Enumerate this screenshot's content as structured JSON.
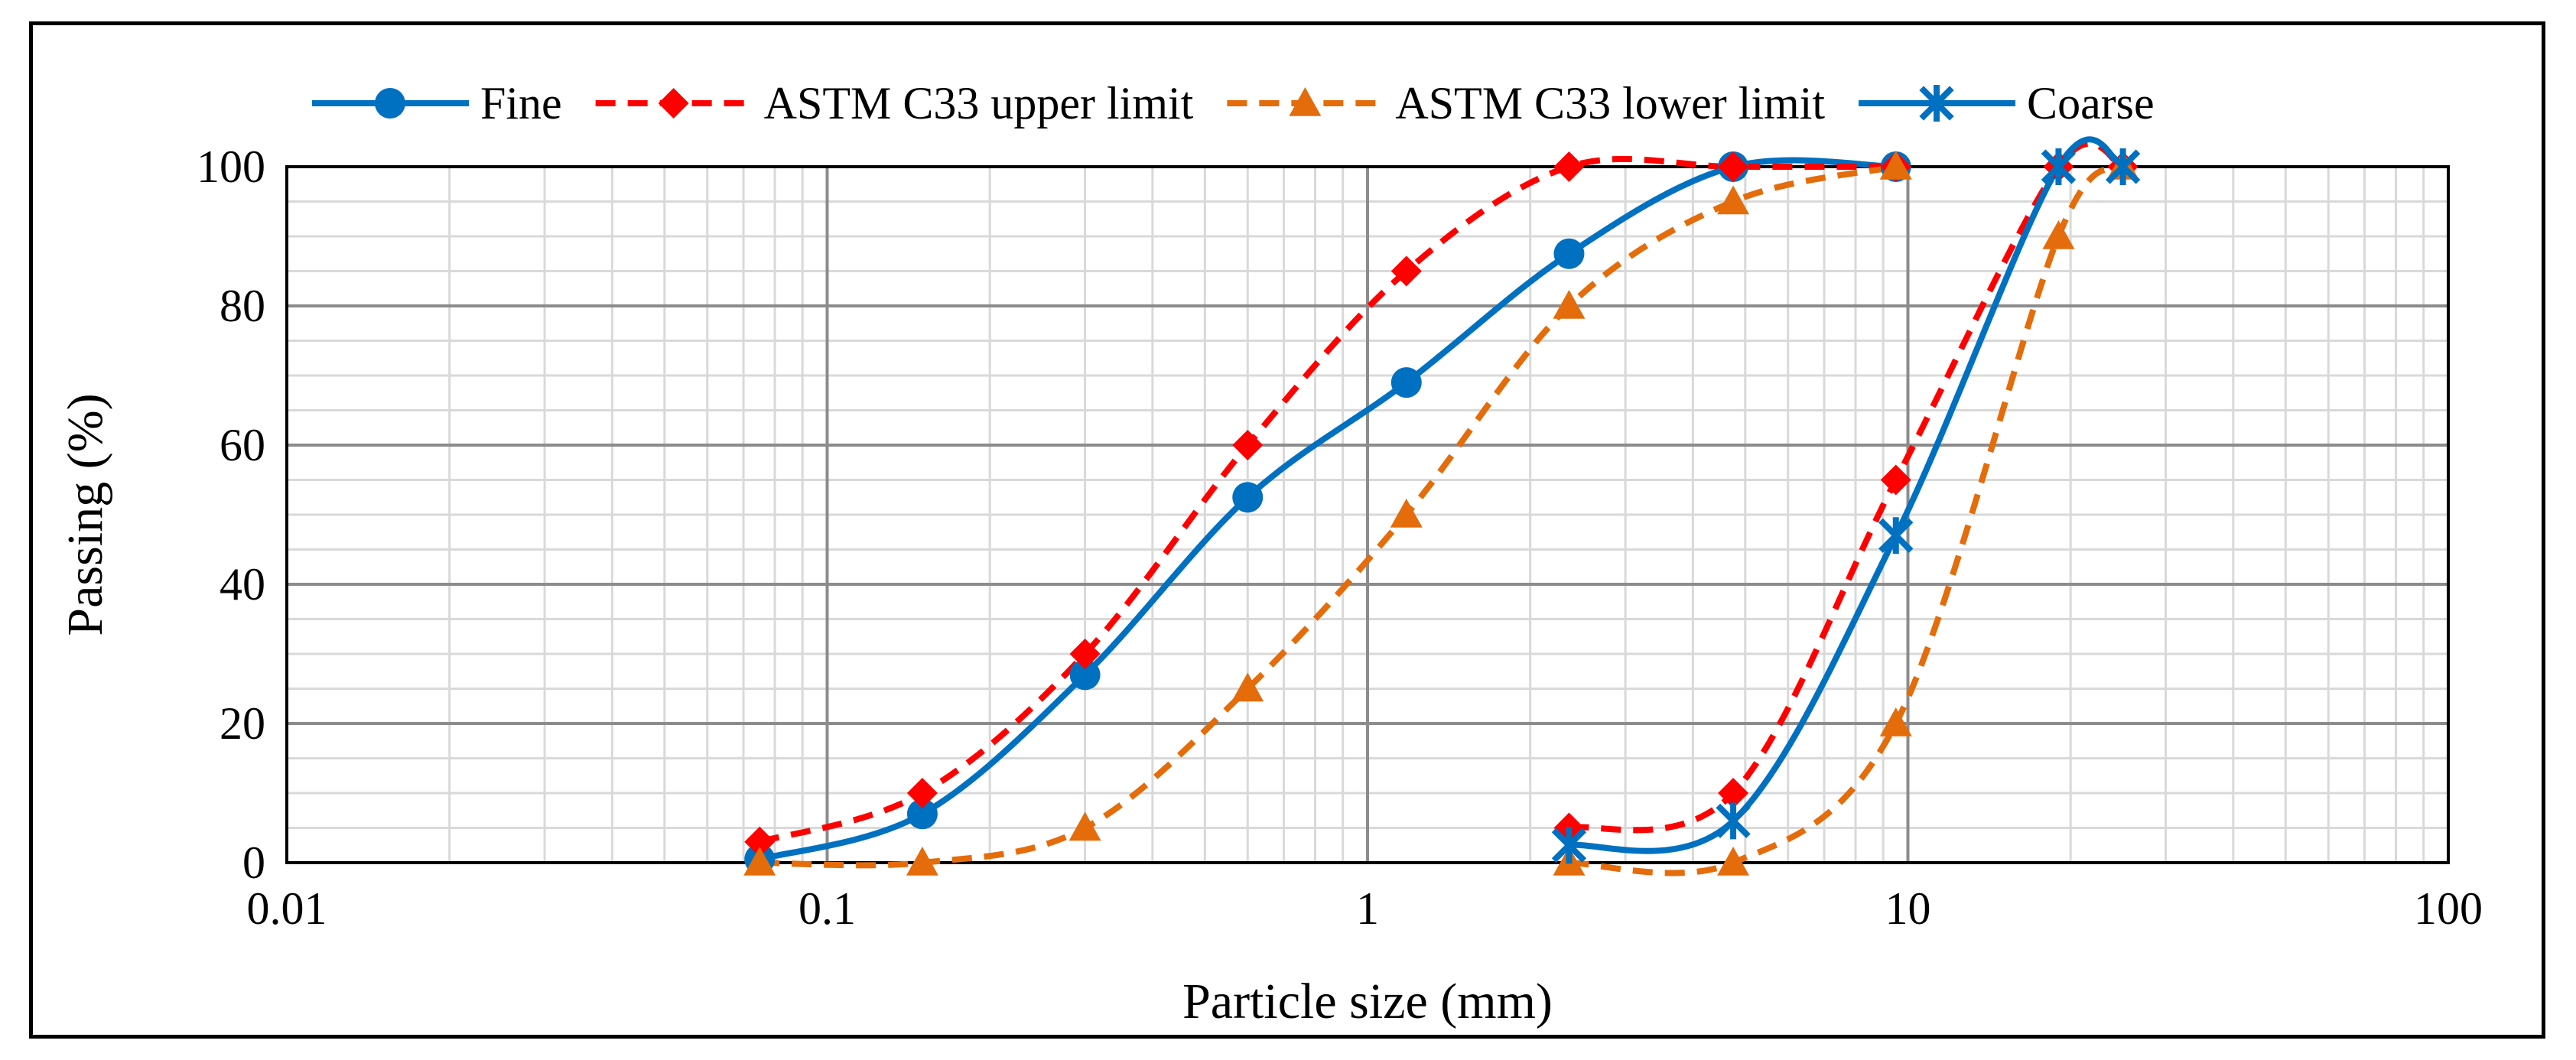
{
  "chart_data": {
    "type": "line",
    "xscale": "log",
    "xlabel": "Particle size (mm)",
    "ylabel": "Passing (%)",
    "xlim": [
      0.01,
      100
    ],
    "ylim": [
      0,
      100
    ],
    "xticks": [
      {
        "value": 0.01,
        "label": "0.01"
      },
      {
        "value": 0.1,
        "label": "0.1"
      },
      {
        "value": 1,
        "label": "1"
      },
      {
        "value": 10,
        "label": "10"
      },
      {
        "value": 100,
        "label": "100"
      }
    ],
    "yticks": [
      {
        "value": 0,
        "label": "0"
      },
      {
        "value": 20,
        "label": "20"
      },
      {
        "value": 40,
        "label": "40"
      },
      {
        "value": 60,
        "label": "60"
      },
      {
        "value": 80,
        "label": "80"
      },
      {
        "value": 100,
        "label": "100"
      }
    ],
    "grid": true,
    "legend_position": "top",
    "series": [
      {
        "name": "Fine",
        "color": "#0070C0",
        "dash": "solid",
        "marker": "circle",
        "x": [
          0.075,
          0.15,
          0.3,
          0.6,
          1.18,
          2.36,
          4.75,
          9.5
        ],
        "y": [
          0.5,
          7,
          27,
          52.5,
          69,
          87.5,
          100,
          100
        ]
      },
      {
        "name": "ASTM C33 upper limit",
        "color": "#FF0000",
        "dash": "dashed",
        "marker": "diamond",
        "x": [
          0.075,
          0.15,
          0.3,
          0.6,
          1.18,
          2.36,
          4.75,
          9.5
        ],
        "y": [
          3,
          10,
          30,
          60,
          85,
          100,
          100,
          100
        ]
      },
      {
        "name": "ASTM C33 lower limit",
        "color": "#E46C0A",
        "dash": "dashed",
        "marker": "triangle",
        "x": [
          0.075,
          0.15,
          0.3,
          0.6,
          1.18,
          2.36,
          4.75,
          9.5
        ],
        "y": [
          0,
          0,
          5,
          25,
          50,
          80,
          95,
          100
        ]
      },
      {
        "name": "ASTM C33 upper limit",
        "color": "#FF0000",
        "dash": "dashed",
        "marker": "diamond",
        "legend": false,
        "x": [
          2.36,
          4.75,
          9.5,
          19,
          25
        ],
        "y": [
          5,
          10,
          55,
          100,
          100
        ]
      },
      {
        "name": "ASTM C33 lower limit",
        "color": "#E46C0A",
        "dash": "dashed",
        "marker": "triangle",
        "legend": false,
        "x": [
          2.36,
          4.75,
          9.5,
          19,
          25
        ],
        "y": [
          0,
          0,
          20,
          90,
          100
        ]
      },
      {
        "name": "Coarse",
        "color": "#0070C0",
        "dash": "solid",
        "marker": "star",
        "x": [
          2.36,
          4.75,
          9.5,
          19,
          25
        ],
        "y": [
          2.5,
          6,
          47,
          100,
          100
        ]
      }
    ]
  }
}
